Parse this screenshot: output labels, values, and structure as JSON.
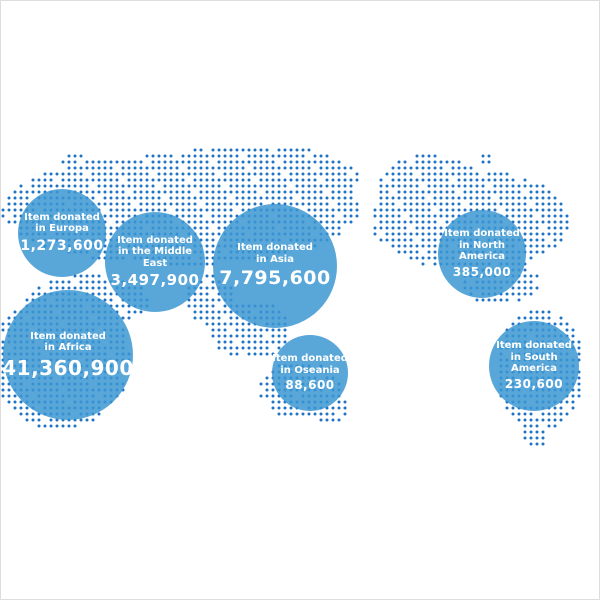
{
  "colors": {
    "dot": "#1f72c4",
    "bubble": "#3c96d2",
    "text": "#ffffff"
  },
  "regions": [
    {
      "id": "europa",
      "line1": "Item donated",
      "line2": "in Europa",
      "value": "1,273,600"
    },
    {
      "id": "middle-east",
      "line1": "Item donated",
      "line2": "in the Middle East",
      "value": "3,497,900"
    },
    {
      "id": "asia",
      "line1": "Item donated",
      "line2": "in Asia",
      "value": "7,795,600"
    },
    {
      "id": "africa",
      "line1": "Item donated",
      "line2": "in Africa",
      "value": "41,360,900"
    },
    {
      "id": "oseania",
      "line1": "Item donated",
      "line2": "in Oseania",
      "value": "88,600"
    },
    {
      "id": "north-america",
      "line1": "Item donated",
      "line2": "in North America",
      "value": "385,000"
    },
    {
      "id": "south-america",
      "line1": "Item donated",
      "line2": "in South America",
      "value": "230,600"
    }
  ]
}
